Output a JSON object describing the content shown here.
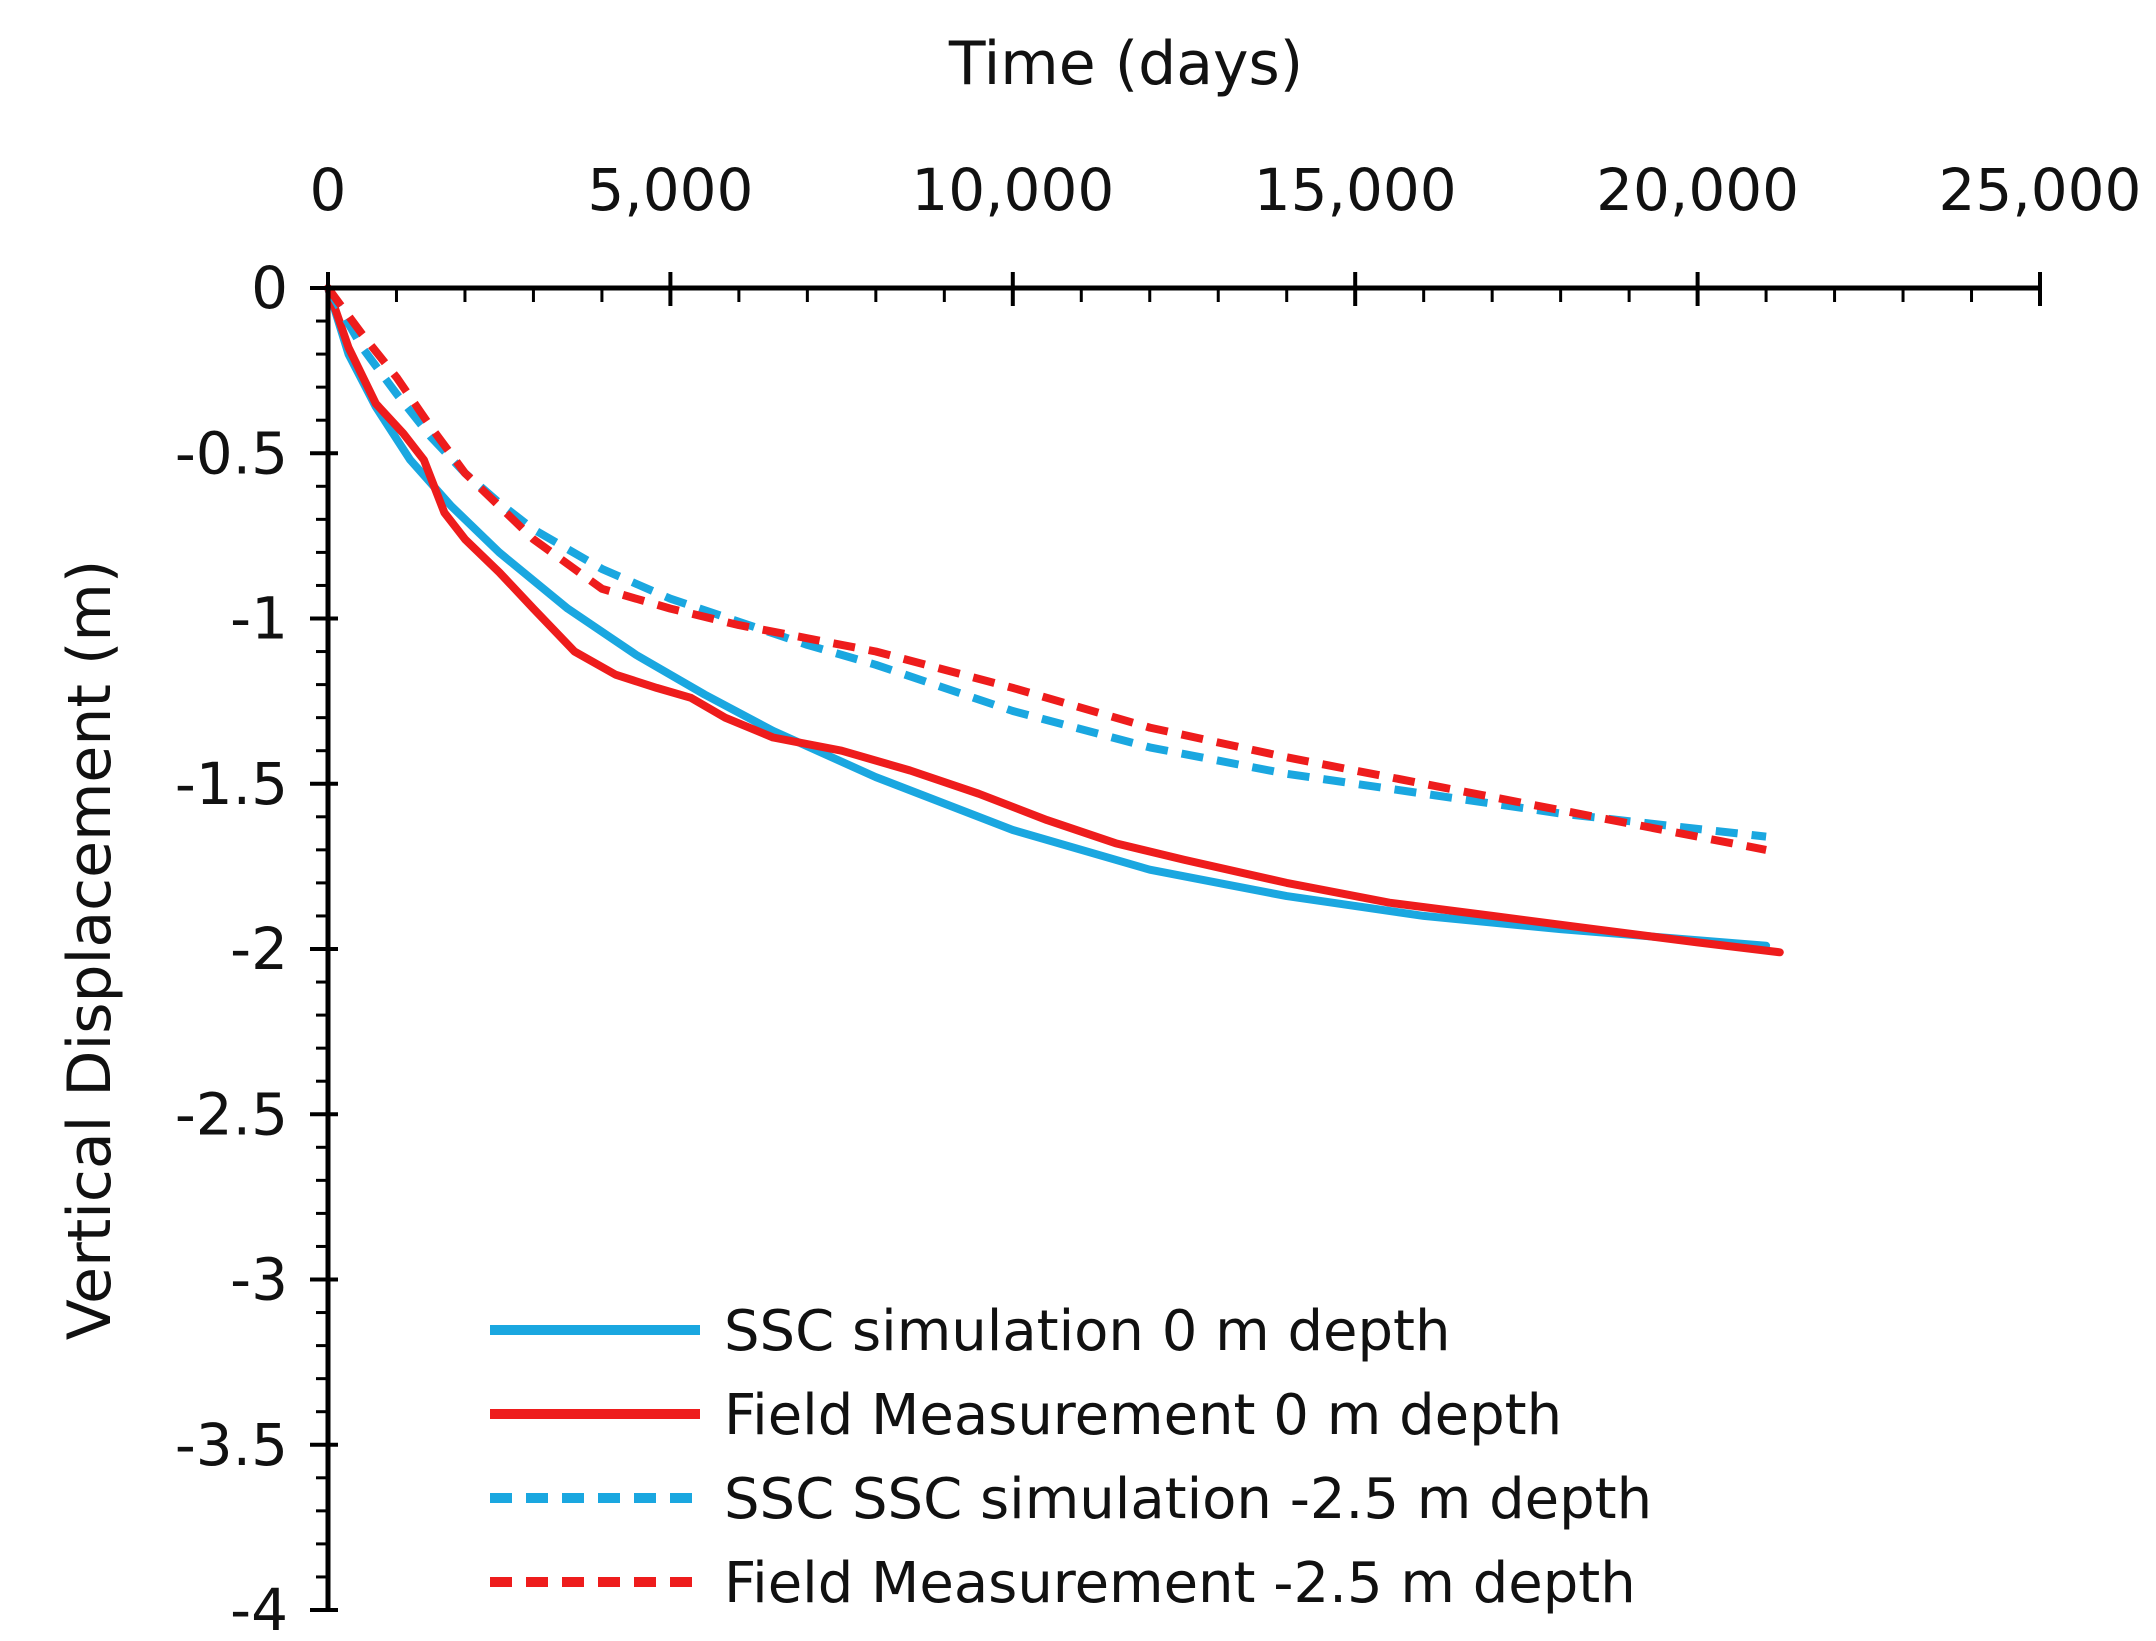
{
  "chart_data": {
    "type": "line",
    "title": "",
    "xlabel": "Time (days)",
    "ylabel": "Vertical Displacement (m)",
    "xlim": [
      0,
      25000
    ],
    "ylim": [
      -4,
      0
    ],
    "xticks": [
      0,
      5000,
      10000,
      15000,
      20000,
      25000
    ],
    "xtick_labels": [
      "0",
      "5,000",
      "10,000",
      "15,000",
      "20,000",
      "25,000"
    ],
    "yticks": [
      0,
      -0.5,
      -1,
      -1.5,
      -2,
      -2.5,
      -3,
      -3.5,
      -4
    ],
    "ytick_labels": [
      "0",
      "-0.5",
      "-1",
      "-1.5",
      "-2",
      "-2.5",
      "-3",
      "-3.5",
      "-4"
    ],
    "x_axis_position": "top",
    "grid": false,
    "legend_position": "bottom-center",
    "series": [
      {
        "name": "SSC simulation 0 m depth",
        "color": "#1aa7e0",
        "style": "solid",
        "x": [
          0,
          300,
          700,
          1200,
          1800,
          2500,
          3500,
          4500,
          5500,
          6500,
          8000,
          10000,
          12000,
          14000,
          16000,
          18000,
          21000
        ],
        "y": [
          0,
          -0.2,
          -0.36,
          -0.52,
          -0.66,
          -0.8,
          -0.97,
          -1.11,
          -1.23,
          -1.34,
          -1.48,
          -1.64,
          -1.76,
          -1.84,
          -1.9,
          -1.94,
          -1.99
        ]
      },
      {
        "name": "Field Measurement 0 m depth",
        "color": "#ee1c1c",
        "style": "solid",
        "x": [
          0,
          300,
          700,
          1100,
          1400,
          1700,
          2000,
          2500,
          3000,
          3600,
          4200,
          4800,
          5300,
          5800,
          6500,
          7500,
          8500,
          9500,
          10500,
          11500,
          12500,
          14000,
          15500,
          17000,
          18500,
          20000,
          21200
        ],
        "y": [
          0,
          -0.18,
          -0.35,
          -0.44,
          -0.52,
          -0.68,
          -0.76,
          -0.86,
          -0.97,
          -1.1,
          -1.17,
          -1.21,
          -1.24,
          -1.3,
          -1.36,
          -1.4,
          -1.46,
          -1.53,
          -1.61,
          -1.68,
          -1.73,
          -1.8,
          -1.86,
          -1.9,
          -1.94,
          -1.98,
          -2.01
        ]
      },
      {
        "name": "SSC SSC simulation -2.5 m depth",
        "color": "#1aa7e0",
        "style": "dashed",
        "x": [
          0,
          500,
          1000,
          1500,
          2000,
          2500,
          3000,
          4000,
          5000,
          6000,
          7000,
          8000,
          10000,
          12000,
          14000,
          16000,
          18000,
          21000
        ],
        "y": [
          0,
          -0.18,
          -0.32,
          -0.45,
          -0.56,
          -0.65,
          -0.73,
          -0.85,
          -0.94,
          -1.01,
          -1.08,
          -1.14,
          -1.28,
          -1.39,
          -1.47,
          -1.53,
          -1.59,
          -1.66
        ]
      },
      {
        "name": "Field Measurement -2.5 m depth",
        "color": "#ee1c1c",
        "style": "dashed",
        "x": [
          0,
          500,
          1000,
          1500,
          2000,
          2500,
          3000,
          4000,
          5000,
          6000,
          7000,
          8000,
          10000,
          12000,
          14000,
          16000,
          18000,
          21000
        ],
        "y": [
          0,
          -0.14,
          -0.27,
          -0.42,
          -0.56,
          -0.66,
          -0.76,
          -0.91,
          -0.97,
          -1.02,
          -1.06,
          -1.1,
          -1.21,
          -1.33,
          -1.42,
          -1.5,
          -1.58,
          -1.7
        ]
      }
    ]
  }
}
